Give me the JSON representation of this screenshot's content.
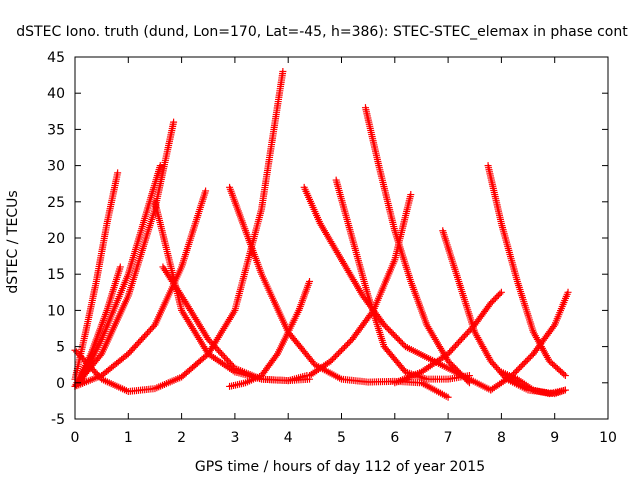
{
  "chart_data": {
    "type": "scatter",
    "title": "dSTEC Iono. truth (dund, Lon=170, Lat=-45, h=386): STEC-STEC_elemax in phase cont",
    "xlabel": "GPS time / hours of day 112 of year 2015",
    "ylabel": "dSTEC  / TECUs",
    "xlim": [
      0,
      10
    ],
    "ylim": [
      -5,
      45
    ],
    "xticks": [
      "0",
      "1",
      "2",
      "3",
      "4",
      "5",
      "6",
      "7",
      "8",
      "9",
      "10"
    ],
    "yticks": [
      "-5",
      "0",
      "5",
      "10",
      "15",
      "20",
      "25",
      "30",
      "35",
      "40",
      "45"
    ],
    "grid": false,
    "marker": "plus",
    "color": "#ff0000",
    "series": [
      {
        "x": [
          0.0,
          0.2,
          0.4,
          0.6,
          0.8
        ],
        "y": [
          0.5,
          7,
          14,
          22,
          29
        ]
      },
      {
        "x": [
          0.0,
          0.3,
          0.6,
          0.85
        ],
        "y": [
          -0.5,
          4,
          10,
          16
        ]
      },
      {
        "x": [
          0.1,
          0.5,
          1.0,
          1.4,
          1.6
        ],
        "y": [
          0,
          6,
          15,
          25,
          30
        ]
      },
      {
        "x": [
          0.0,
          0.5,
          1.0,
          1.5,
          1.85
        ],
        "y": [
          -0.5,
          4,
          12,
          24,
          36
        ]
      },
      {
        "x": [
          0.0,
          0.5,
          1.0,
          1.5,
          2.0,
          2.45
        ],
        "y": [
          -0.5,
          1,
          4,
          8,
          16,
          26.5
        ]
      },
      {
        "x": [
          0.0,
          0.5,
          1.0,
          1.5,
          2.0,
          2.5,
          3.0,
          3.5,
          3.9
        ],
        "y": [
          4.5,
          0.5,
          -1.2,
          -0.8,
          0.8,
          4,
          10,
          24,
          43
        ]
      },
      {
        "x": [
          1.5,
          1.7,
          2.0,
          2.5,
          3.0,
          3.5,
          4.0,
          4.35
        ],
        "y": [
          25,
          19,
          10,
          4,
          1.5,
          0.5,
          0.3,
          1
        ]
      },
      {
        "x": [
          1.65,
          2.0,
          2.5,
          3.0,
          3.5,
          4.0,
          4.4
        ],
        "y": [
          16,
          12,
          6,
          2,
          0.5,
          0.3,
          0.5
        ]
      },
      {
        "x": [
          2.9,
          3.2,
          3.5,
          4.0,
          4.5,
          5.0,
          5.5,
          6.0,
          6.5,
          7.0
        ],
        "y": [
          27,
          21,
          15,
          7,
          2.5,
          0.5,
          0.1,
          0.2,
          0,
          -2
        ]
      },
      {
        "x": [
          2.9,
          3.2,
          3.5,
          3.8,
          4.0,
          4.2,
          4.4
        ],
        "y": [
          -0.5,
          0,
          1,
          4,
          7,
          10,
          14
        ]
      },
      {
        "x": [
          4.3,
          4.6,
          5.0,
          5.4,
          5.8,
          6.2,
          6.6,
          7.0,
          7.4,
          7.8
        ],
        "y": [
          27,
          22,
          17,
          12,
          8,
          5,
          3.5,
          2,
          0.5,
          -1
        ]
      },
      {
        "x": [
          4.4,
          4.8,
          5.2,
          5.6,
          6.0,
          6.3
        ],
        "y": [
          1,
          3,
          6,
          10,
          17,
          26
        ]
      },
      {
        "x": [
          4.9,
          5.2,
          5.5,
          5.8,
          6.2,
          6.6,
          7.0,
          7.4
        ],
        "y": [
          28,
          20,
          12,
          5,
          1.5,
          0.5,
          0.5,
          1
        ]
      },
      {
        "x": [
          5.45,
          5.7,
          6.0,
          6.3,
          6.6,
          7.0,
          7.4
        ],
        "y": [
          38,
          30,
          21,
          14,
          8,
          3,
          0
        ]
      },
      {
        "x": [
          6.0,
          6.5,
          7.0,
          7.5,
          7.8,
          8.0
        ],
        "y": [
          0,
          1.5,
          4,
          8,
          11,
          12.5
        ]
      },
      {
        "x": [
          6.9,
          7.2,
          7.5,
          7.8,
          8.1,
          8.5,
          9.0,
          9.2
        ],
        "y": [
          21,
          14,
          7,
          3,
          0.5,
          -1,
          -1.5,
          -1
        ]
      },
      {
        "x": [
          7.75,
          8.0,
          8.3,
          8.6,
          8.9,
          9.2
        ],
        "y": [
          30,
          22,
          14,
          7,
          3,
          1
        ]
      },
      {
        "x": [
          7.8,
          8.2,
          8.6,
          9.0,
          9.25
        ],
        "y": [
          -1,
          1,
          4,
          8,
          12.5
        ]
      },
      {
        "x": [
          8.0,
          8.3,
          8.6,
          8.9,
          9.2
        ],
        "y": [
          1.5,
          0.5,
          -1,
          -1.5,
          -1
        ]
      }
    ]
  }
}
